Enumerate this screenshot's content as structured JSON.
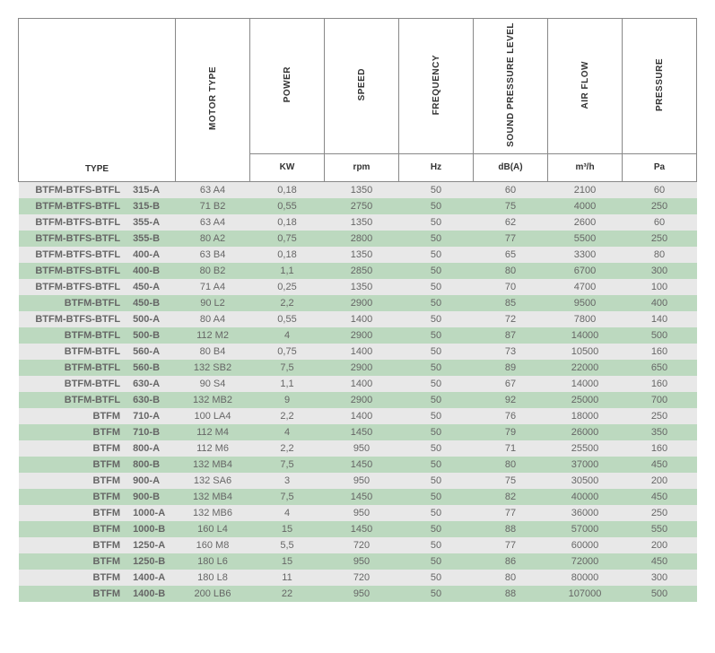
{
  "table": {
    "header_colors": {
      "border": "#888888",
      "bg": "#ffffff",
      "text": "#333333"
    },
    "row_colors": {
      "odd": "#e8e8e8",
      "even": "#bcd9bf"
    },
    "columns": [
      {
        "label": "TYPE",
        "unit": ""
      },
      {
        "label": "MOTOR TYPE",
        "unit": ""
      },
      {
        "label": "POWER",
        "unit": "KW"
      },
      {
        "label": "SPEED",
        "unit": "rpm"
      },
      {
        "label": "FREQUENCY",
        "unit": "Hz"
      },
      {
        "label": "SOUND PRESSURE LEVEL",
        "unit": "dB(A)"
      },
      {
        "label": "AIR FLOW",
        "unit": "m³/h"
      },
      {
        "label": "PRESSURE",
        "unit": "Pa"
      }
    ],
    "rows": [
      {
        "type_main": "BTFM-BTFS-BTFL",
        "type_sub": "315-A",
        "motor": "63 A4",
        "power": "0,18",
        "speed": "1350",
        "freq": "50",
        "sound": "60",
        "airflow": "2100",
        "pressure": "60"
      },
      {
        "type_main": "BTFM-BTFS-BTFL",
        "type_sub": "315-B",
        "motor": "71 B2",
        "power": "0,55",
        "speed": "2750",
        "freq": "50",
        "sound": "75",
        "airflow": "4000",
        "pressure": "250"
      },
      {
        "type_main": "BTFM-BTFS-BTFL",
        "type_sub": "355-A",
        "motor": "63 A4",
        "power": "0,18",
        "speed": "1350",
        "freq": "50",
        "sound": "62",
        "airflow": "2600",
        "pressure": "60"
      },
      {
        "type_main": "BTFM-BTFS-BTFL",
        "type_sub": "355-B",
        "motor": "80 A2",
        "power": "0,75",
        "speed": "2800",
        "freq": "50",
        "sound": "77",
        "airflow": "5500",
        "pressure": "250"
      },
      {
        "type_main": "BTFM-BTFS-BTFL",
        "type_sub": "400-A",
        "motor": "63 B4",
        "power": "0,18",
        "speed": "1350",
        "freq": "50",
        "sound": "65",
        "airflow": "3300",
        "pressure": "80"
      },
      {
        "type_main": "BTFM-BTFS-BTFL",
        "type_sub": "400-B",
        "motor": "80 B2",
        "power": "1,1",
        "speed": "2850",
        "freq": "50",
        "sound": "80",
        "airflow": "6700",
        "pressure": "300"
      },
      {
        "type_main": "BTFM-BTFS-BTFL",
        "type_sub": "450-A",
        "motor": "71 A4",
        "power": "0,25",
        "speed": "1350",
        "freq": "50",
        "sound": "70",
        "airflow": "4700",
        "pressure": "100"
      },
      {
        "type_main": "BTFM-BTFL",
        "type_sub": "450-B",
        "motor": "90 L2",
        "power": "2,2",
        "speed": "2900",
        "freq": "50",
        "sound": "85",
        "airflow": "9500",
        "pressure": "400"
      },
      {
        "type_main": "BTFM-BTFS-BTFL",
        "type_sub": "500-A",
        "motor": "80 A4",
        "power": "0,55",
        "speed": "1400",
        "freq": "50",
        "sound": "72",
        "airflow": "7800",
        "pressure": "140"
      },
      {
        "type_main": "BTFM-BTFL",
        "type_sub": "500-B",
        "motor": "112 M2",
        "power": "4",
        "speed": "2900",
        "freq": "50",
        "sound": "87",
        "airflow": "14000",
        "pressure": "500"
      },
      {
        "type_main": "BTFM-BTFL",
        "type_sub": "560-A",
        "motor": "80 B4",
        "power": "0,75",
        "speed": "1400",
        "freq": "50",
        "sound": "73",
        "airflow": "10500",
        "pressure": "160"
      },
      {
        "type_main": "BTFM-BTFL",
        "type_sub": "560-B",
        "motor": "132 SB2",
        "power": "7,5",
        "speed": "2900",
        "freq": "50",
        "sound": "89",
        "airflow": "22000",
        "pressure": "650"
      },
      {
        "type_main": "BTFM-BTFL",
        "type_sub": "630-A",
        "motor": "90 S4",
        "power": "1,1",
        "speed": "1400",
        "freq": "50",
        "sound": "67",
        "airflow": "14000",
        "pressure": "160"
      },
      {
        "type_main": "BTFM-BTFL",
        "type_sub": "630-B",
        "motor": "132 MB2",
        "power": "9",
        "speed": "2900",
        "freq": "50",
        "sound": "92",
        "airflow": "25000",
        "pressure": "700"
      },
      {
        "type_main": "BTFM",
        "type_sub": "710-A",
        "motor": "100 LA4",
        "power": "2,2",
        "speed": "1400",
        "freq": "50",
        "sound": "76",
        "airflow": "18000",
        "pressure": "250"
      },
      {
        "type_main": "BTFM",
        "type_sub": "710-B",
        "motor": "112 M4",
        "power": "4",
        "speed": "1450",
        "freq": "50",
        "sound": "79",
        "airflow": "26000",
        "pressure": "350"
      },
      {
        "type_main": "BTFM",
        "type_sub": "800-A",
        "motor": "112 M6",
        "power": "2,2",
        "speed": "950",
        "freq": "50",
        "sound": "71",
        "airflow": "25500",
        "pressure": "160"
      },
      {
        "type_main": "BTFM",
        "type_sub": "800-B",
        "motor": "132 MB4",
        "power": "7,5",
        "speed": "1450",
        "freq": "50",
        "sound": "80",
        "airflow": "37000",
        "pressure": "450"
      },
      {
        "type_main": "BTFM",
        "type_sub": "900-A",
        "motor": "132 SA6",
        "power": "3",
        "speed": "950",
        "freq": "50",
        "sound": "75",
        "airflow": "30500",
        "pressure": "200"
      },
      {
        "type_main": "BTFM",
        "type_sub": "900-B",
        "motor": "132 MB4",
        "power": "7,5",
        "speed": "1450",
        "freq": "50",
        "sound": "82",
        "airflow": "40000",
        "pressure": "450"
      },
      {
        "type_main": "BTFM",
        "type_sub": "1000-A",
        "motor": "132 MB6",
        "power": "4",
        "speed": "950",
        "freq": "50",
        "sound": "77",
        "airflow": "36000",
        "pressure": "250"
      },
      {
        "type_main": "BTFM",
        "type_sub": "1000-B",
        "motor": "160 L4",
        "power": "15",
        "speed": "1450",
        "freq": "50",
        "sound": "88",
        "airflow": "57000",
        "pressure": "550"
      },
      {
        "type_main": "BTFM",
        "type_sub": "1250-A",
        "motor": "160 M8",
        "power": "5,5",
        "speed": "720",
        "freq": "50",
        "sound": "77",
        "airflow": "60000",
        "pressure": "200"
      },
      {
        "type_main": "BTFM",
        "type_sub": "1250-B",
        "motor": "180 L6",
        "power": "15",
        "speed": "950",
        "freq": "50",
        "sound": "86",
        "airflow": "72000",
        "pressure": "450"
      },
      {
        "type_main": "BTFM",
        "type_sub": "1400-A",
        "motor": "180 L8",
        "power": "11",
        "speed": "720",
        "freq": "50",
        "sound": "80",
        "airflow": "80000",
        "pressure": "300"
      },
      {
        "type_main": "BTFM",
        "type_sub": "1400-B",
        "motor": "200 LB6",
        "power": "22",
        "speed": "950",
        "freq": "50",
        "sound": "88",
        "airflow": "107000",
        "pressure": "500"
      }
    ]
  }
}
